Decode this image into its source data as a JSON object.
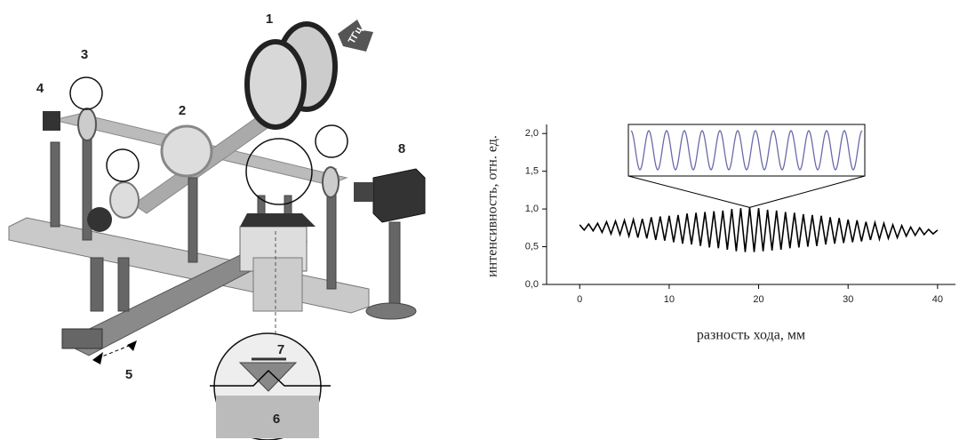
{
  "diagram": {
    "labels": [
      "1",
      "2",
      "3",
      "4",
      "5",
      "6",
      "7",
      "8"
    ],
    "source_label": "ТГц"
  },
  "chart_data": {
    "type": "line",
    "x_label": "разность хода, мм",
    "y_label": "интенсивность, отн. ед.",
    "color": "#000000",
    "xlim": [
      -3.7,
      42
    ],
    "ylim": [
      0,
      2.12
    ],
    "xticks": [
      0,
      10,
      20,
      30,
      40
    ],
    "yticks": [
      {
        "value": 0,
        "label": "0,0"
      },
      {
        "value": 0.5,
        "label": "0,5"
      },
      {
        "value": 1,
        "label": "1,0"
      },
      {
        "value": 1.5,
        "label": "1,5"
      },
      {
        "value": 2,
        "label": "2,0"
      }
    ],
    "x": [
      0,
      0.5,
      1,
      1.5,
      2,
      2.5,
      3,
      3.5,
      4,
      4.5,
      5,
      5.5,
      6,
      6.5,
      7,
      7.5,
      8,
      8.5,
      9,
      9.5,
      10,
      10.5,
      11,
      11.5,
      12,
      12.5,
      13,
      13.5,
      14,
      14.5,
      15,
      15.5,
      16,
      16.5,
      17,
      17.5,
      18,
      18.5,
      19,
      19.5,
      20,
      20.5,
      21,
      21.5,
      22,
      22.5,
      23,
      23.5,
      24,
      24.5,
      25,
      25.5,
      26,
      26.5,
      27,
      27.5,
      28,
      28.5,
      29,
      29.5,
      30,
      30.5,
      31,
      31.5,
      32,
      32.5,
      33,
      33.5,
      34,
      34.5,
      35,
      35.5,
      36,
      36.5,
      37,
      37.5,
      38,
      38.5,
      39,
      39.5,
      40
    ],
    "values": [
      0.79,
      0.72,
      0.8,
      0.71,
      0.81,
      0.69,
      0.83,
      0.67,
      0.84,
      0.66,
      0.85,
      0.64,
      0.86,
      0.62,
      0.87,
      0.61,
      0.89,
      0.59,
      0.9,
      0.58,
      0.91,
      0.56,
      0.92,
      0.54,
      0.94,
      0.53,
      0.95,
      0.51,
      0.96,
      0.49,
      0.97,
      0.48,
      0.98,
      0.46,
      1.0,
      0.44,
      1.01,
      0.43,
      1.02,
      0.43,
      1.01,
      0.44,
      0.99,
      0.45,
      0.98,
      0.46,
      0.96,
      0.48,
      0.95,
      0.49,
      0.93,
      0.5,
      0.92,
      0.51,
      0.91,
      0.53,
      0.89,
      0.54,
      0.88,
      0.55,
      0.86,
      0.56,
      0.85,
      0.57,
      0.83,
      0.59,
      0.82,
      0.6,
      0.81,
      0.61,
      0.79,
      0.62,
      0.78,
      0.64,
      0.76,
      0.65,
      0.75,
      0.66,
      0.73,
      0.67,
      0.72
    ]
  }
}
